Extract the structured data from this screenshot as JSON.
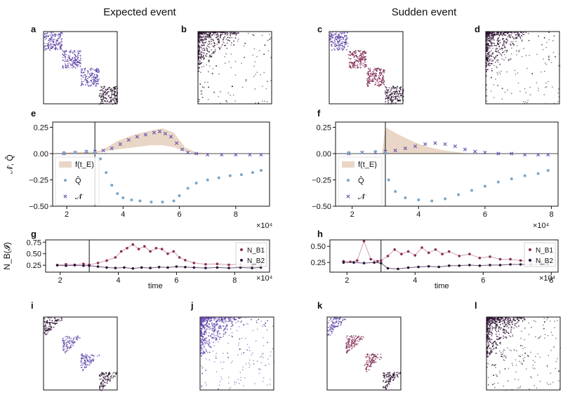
{
  "headers": {
    "left": "Expected event",
    "right": "Sudden event"
  },
  "panel_labels": [
    "a",
    "b",
    "c",
    "d",
    "e",
    "f",
    "g",
    "h",
    "i",
    "j",
    "k",
    "l"
  ],
  "exponent_label": "×10⁴",
  "colors": {
    "q_dots": "#7aa6c8",
    "n_crosses": "#6a55b0",
    "band": "#ead6c6",
    "nb1": "#8b2c55",
    "nb1_line": "#cfa0b4",
    "nb2": "#2b1438",
    "matrix_purple": "#5b3fa6",
    "matrix_wine": "#7a1f4a",
    "matrix_dark": "#2a0f2e"
  },
  "chart_data": [
    {
      "id": "e",
      "type": "scatter",
      "title": "",
      "ylabel": "𝒩̂, Q̂",
      "xlim": [
        1.5,
        9.2
      ],
      "ylim": [
        -0.5,
        0.3
      ],
      "xticks": [
        2,
        4,
        6,
        8
      ],
      "yticks": [
        -0.5,
        -0.25,
        0.0,
        0.25
      ],
      "ytick_labels": [
        "−0.50",
        "−0.25",
        "0.00",
        "0.25"
      ],
      "event_x": 3.0,
      "legend": [
        "f(t_E)",
        "Q̂",
        "𝒩̂"
      ],
      "legend_position": "lower-left",
      "band": {
        "x": [
          1.9,
          3.0,
          3.3,
          3.8,
          4.4,
          5.0,
          5.4,
          5.8,
          6.2,
          6.6,
          7.0,
          9.0
        ],
        "upper": [
          0.01,
          0.02,
          0.04,
          0.12,
          0.18,
          0.22,
          0.24,
          0.2,
          0.06,
          0.01,
          0.0,
          0.0
        ],
        "lower": [
          0.0,
          0.0,
          0.02,
          0.04,
          0.06,
          0.08,
          0.08,
          0.06,
          0.02,
          0.0,
          0.0,
          0.0
        ]
      },
      "series": [
        {
          "name": "𝒩̂",
          "marker": "x",
          "x": [
            1.9,
            2.3,
            2.7,
            3.0,
            3.3,
            3.6,
            3.9,
            4.2,
            4.5,
            4.8,
            5.1,
            5.3,
            5.5,
            5.7,
            5.9,
            6.1,
            6.3,
            6.6,
            7.0,
            7.5,
            8.0,
            8.5,
            8.9
          ],
          "y": [
            0.0,
            0.01,
            0.02,
            0.02,
            0.03,
            0.05,
            0.09,
            0.13,
            0.16,
            0.18,
            0.2,
            0.21,
            0.19,
            0.16,
            0.1,
            0.04,
            0.01,
            0.0,
            -0.01,
            -0.01,
            -0.01,
            -0.01,
            -0.01
          ]
        },
        {
          "name": "Q̂",
          "marker": "o",
          "x": [
            1.9,
            2.3,
            2.7,
            3.0,
            3.2,
            3.4,
            3.6,
            3.8,
            4.0,
            4.3,
            4.6,
            5.0,
            5.4,
            5.8,
            6.0,
            6.3,
            6.6,
            7.0,
            7.4,
            7.8,
            8.2,
            8.6,
            8.9
          ],
          "y": [
            0.01,
            0.01,
            0.02,
            0.01,
            -0.05,
            -0.18,
            -0.3,
            -0.38,
            -0.42,
            -0.44,
            -0.45,
            -0.46,
            -0.46,
            -0.45,
            -0.4,
            -0.33,
            -0.28,
            -0.25,
            -0.23,
            -0.21,
            -0.2,
            -0.18,
            -0.16
          ]
        }
      ]
    },
    {
      "id": "f",
      "type": "scatter",
      "title": "",
      "xlim": [
        1.5,
        8.2
      ],
      "ylim": [
        -0.5,
        0.3
      ],
      "xticks": [
        2,
        4,
        6,
        8
      ],
      "yticks": [
        -0.5,
        -0.25,
        0.0,
        0.25
      ],
      "ytick_labels": [
        "−0.50",
        "−0.25",
        "0.00",
        "0.25"
      ],
      "event_x": 3.0,
      "legend": [
        "f(t_E)",
        "Q̂",
        "𝒩̂"
      ],
      "legend_position": "lower-left",
      "band": {
        "x": [
          1.9,
          2.9,
          3.0,
          3.4,
          3.8,
          4.2,
          4.6,
          5.0,
          5.5,
          8.0
        ],
        "upper": [
          0.0,
          0.0,
          0.25,
          0.18,
          0.12,
          0.07,
          0.04,
          0.02,
          0.0,
          0.0
        ],
        "lower": [
          0.0,
          0.0,
          0.0,
          0.0,
          0.0,
          0.0,
          0.0,
          0.0,
          0.0,
          0.0
        ]
      },
      "series": [
        {
          "name": "𝒩̂",
          "marker": "x",
          "x": [
            1.9,
            2.3,
            2.7,
            3.0,
            3.3,
            3.6,
            3.9,
            4.2,
            4.5,
            4.8,
            5.1,
            5.4,
            5.7,
            6.0,
            6.4,
            6.8,
            7.2,
            7.6,
            7.9
          ],
          "y": [
            0.0,
            0.01,
            0.01,
            0.02,
            0.03,
            0.05,
            0.07,
            0.09,
            0.1,
            0.09,
            0.07,
            0.04,
            0.02,
            0.01,
            0.0,
            0.0,
            -0.01,
            -0.01,
            -0.01
          ]
        },
        {
          "name": "Q̂",
          "marker": "o",
          "x": [
            1.9,
            2.3,
            2.7,
            3.0,
            3.1,
            3.3,
            3.6,
            4.0,
            4.4,
            4.8,
            5.2,
            5.6,
            6.0,
            6.4,
            6.8,
            7.2,
            7.6,
            7.9
          ],
          "y": [
            0.01,
            0.01,
            0.02,
            0.01,
            -0.25,
            -0.36,
            -0.42,
            -0.44,
            -0.45,
            -0.43,
            -0.39,
            -0.35,
            -0.31,
            -0.27,
            -0.24,
            -0.21,
            -0.19,
            -0.16
          ]
        }
      ]
    },
    {
      "id": "g",
      "type": "line",
      "title": "",
      "xlabel": "time",
      "ylabel": "N_B(𝓘)",
      "xlim": [
        1.5,
        9.2
      ],
      "ylim": [
        0.1,
        0.8
      ],
      "xticks": [
        2,
        4,
        6,
        8
      ],
      "yticks": [
        0.25,
        0.5,
        0.75
      ],
      "ytick_labels": [
        "0.25",
        "0.50",
        "0.75"
      ],
      "event_x": 3.0,
      "legend": [
        "N_B1",
        "N_B2"
      ],
      "legend_position": "top-right",
      "series": [
        {
          "name": "N_B1",
          "x": [
            1.9,
            2.2,
            2.5,
            2.8,
            3.0,
            3.3,
            3.6,
            3.9,
            4.1,
            4.3,
            4.5,
            4.7,
            4.9,
            5.1,
            5.3,
            5.5,
            5.7,
            5.9,
            6.1,
            6.3,
            6.6,
            7.0,
            7.4,
            7.8,
            8.2,
            8.6,
            8.9
          ],
          "y": [
            0.25,
            0.27,
            0.26,
            0.28,
            0.26,
            0.3,
            0.35,
            0.42,
            0.55,
            0.62,
            0.7,
            0.6,
            0.66,
            0.55,
            0.62,
            0.6,
            0.5,
            0.55,
            0.42,
            0.36,
            0.3,
            0.27,
            0.28,
            0.26,
            0.27,
            0.25,
            0.26
          ]
        },
        {
          "name": "N_B2",
          "x": [
            1.9,
            2.2,
            2.5,
            2.8,
            3.0,
            3.3,
            3.6,
            3.9,
            4.2,
            4.5,
            4.8,
            5.1,
            5.4,
            5.7,
            6.0,
            6.3,
            6.6,
            7.0,
            7.4,
            7.8,
            8.2,
            8.6,
            8.9
          ],
          "y": [
            0.25,
            0.24,
            0.25,
            0.24,
            0.24,
            0.22,
            0.2,
            0.19,
            0.2,
            0.18,
            0.2,
            0.19,
            0.21,
            0.2,
            0.22,
            0.21,
            0.2,
            0.19,
            0.2,
            0.19,
            0.2,
            0.19,
            0.2
          ]
        }
      ]
    },
    {
      "id": "h",
      "type": "line",
      "title": "",
      "xlabel": "time",
      "xlim": [
        1.5,
        8.2
      ],
      "ylim": [
        0.1,
        0.6
      ],
      "xticks": [
        2,
        4,
        6,
        8
      ],
      "yticks": [
        0.25,
        0.5
      ],
      "ytick_labels": [
        "0.25",
        "0.50"
      ],
      "event_x": 3.0,
      "legend": [
        "N_B1",
        "N_B2"
      ],
      "legend_position": "top-right",
      "series": [
        {
          "name": "N_B1",
          "x": [
            1.9,
            2.1,
            2.3,
            2.5,
            2.7,
            2.9,
            3.0,
            3.2,
            3.4,
            3.6,
            3.8,
            4.0,
            4.2,
            4.4,
            4.6,
            4.8,
            5.0,
            5.3,
            5.6,
            5.9,
            6.2,
            6.5,
            6.8,
            7.1,
            7.4,
            7.7,
            7.9
          ],
          "y": [
            0.27,
            0.26,
            0.28,
            0.58,
            0.3,
            0.27,
            0.28,
            0.35,
            0.45,
            0.38,
            0.42,
            0.36,
            0.48,
            0.4,
            0.45,
            0.38,
            0.42,
            0.35,
            0.38,
            0.32,
            0.34,
            0.3,
            0.3,
            0.28,
            0.27,
            0.26,
            0.26
          ]
        },
        {
          "name": "N_B2",
          "x": [
            1.9,
            2.2,
            2.5,
            2.8,
            3.0,
            3.2,
            3.5,
            3.8,
            4.1,
            4.4,
            4.7,
            5.0,
            5.3,
            5.6,
            5.9,
            6.2,
            6.5,
            6.8,
            7.1,
            7.4,
            7.7,
            7.9
          ],
          "y": [
            0.25,
            0.25,
            0.24,
            0.25,
            0.24,
            0.16,
            0.15,
            0.17,
            0.18,
            0.19,
            0.18,
            0.2,
            0.2,
            0.21,
            0.2,
            0.21,
            0.21,
            0.22,
            0.22,
            0.22,
            0.22,
            0.22
          ]
        }
      ]
    }
  ]
}
